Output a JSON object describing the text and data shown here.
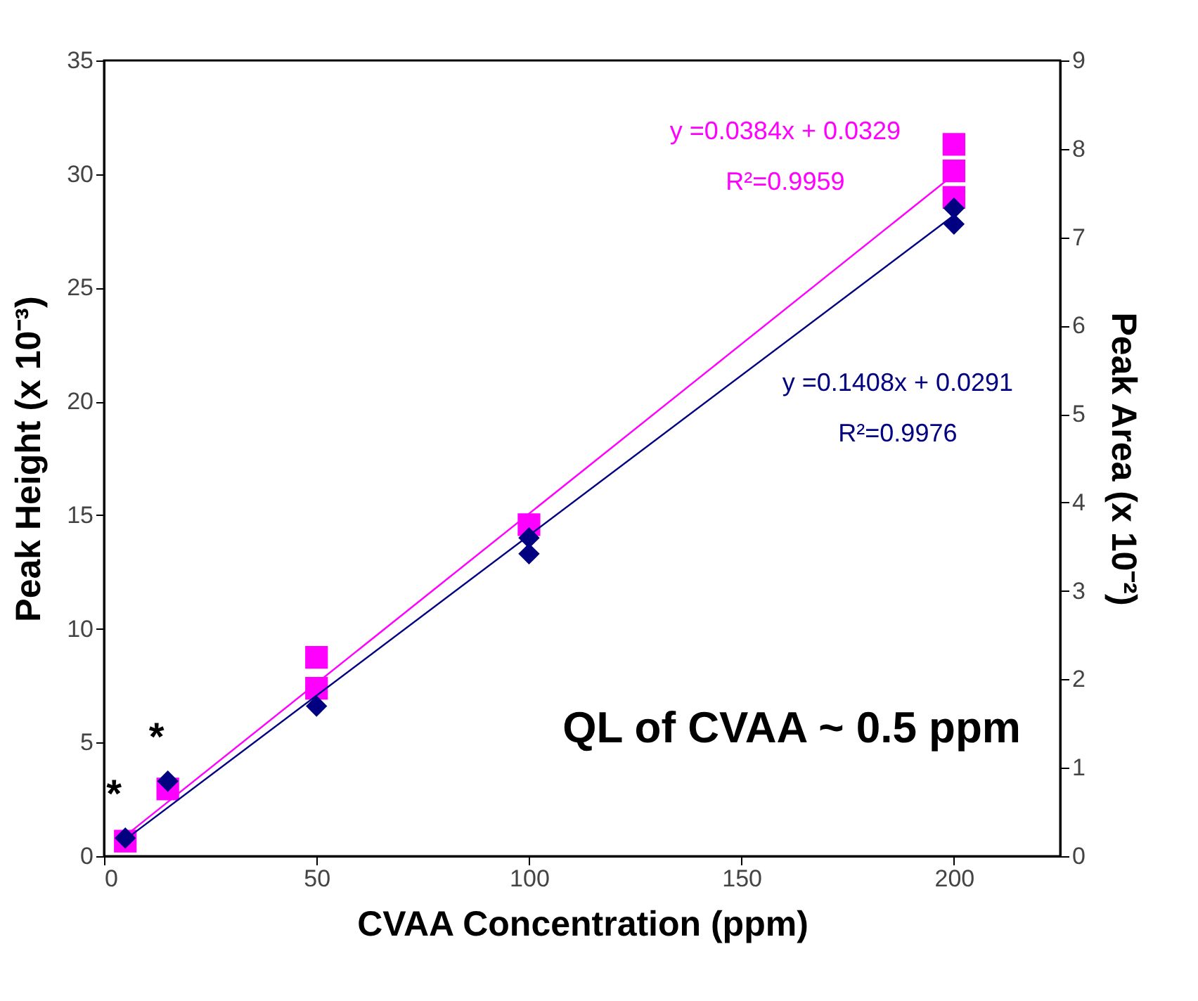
{
  "chart_data": {
    "type": "scatter",
    "xlabel": "CVAA Concentration (ppm)",
    "ylabel": "Peak Height (x 10⁻³)",
    "y2label": "Peak Area (x 10⁻²)",
    "xlim": [
      0,
      225
    ],
    "xticks": [
      0,
      50,
      100,
      150,
      200
    ],
    "ylim": [
      0,
      35
    ],
    "yticks": [
      0,
      5,
      10,
      15,
      20,
      25,
      30,
      35
    ],
    "y2lim": [
      0,
      9
    ],
    "y2ticks": [
      0,
      1,
      2,
      3,
      4,
      5,
      6,
      7,
      8,
      9
    ],
    "grid": false,
    "series": [
      {
        "marker": "diamond",
        "color": "#000080",
        "x": [
          5,
          15,
          50,
          100,
          100,
          200,
          200
        ],
        "values": [
          0.8,
          3.3,
          6.6,
          13.3,
          14.0,
          27.8,
          28.5
        ]
      },
      {
        "marker": "square",
        "axis": "y2",
        "color": "#ff00ff",
        "x": [
          5,
          15,
          50,
          50,
          100,
          200,
          200,
          200
        ],
        "values": [
          0.17,
          0.76,
          1.9,
          2.25,
          3.75,
          7.45,
          7.75,
          8.05
        ]
      },
      {
        "type": "line",
        "name": "y =0.1408x + 0.0291\nR²=0.9976",
        "color": "#000080",
        "x": [
          5,
          200
        ],
        "values": [
          0.73,
          28.19
        ]
      },
      {
        "type": "line",
        "name": "y =0.0384x + 0.0329\nR²=0.9959",
        "axis": "y2",
        "color": "#ff00ff",
        "x": [
          5,
          200
        ],
        "values": [
          0.23,
          7.71
        ]
      }
    ],
    "annotations": [
      {
        "text": "*",
        "x": 5,
        "y": 0.8
      },
      {
        "text": "*",
        "x": 15,
        "y": 3.3
      },
      "QL of CVAA ~ 0.5 ppm"
    ]
  }
}
